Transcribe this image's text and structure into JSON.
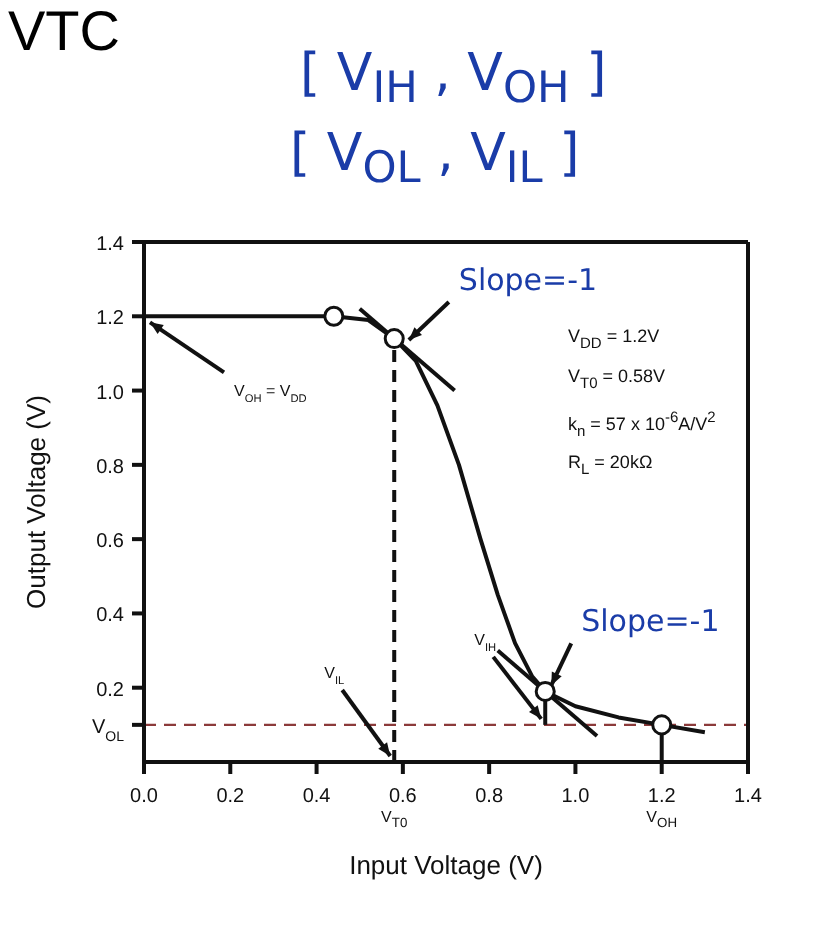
{
  "chart_data": {
    "type": "line",
    "title": "VTC",
    "xlabel": "Input Voltage (V)",
    "ylabel": "Output Voltage (V)",
    "xlim": [
      0,
      1.4
    ],
    "ylim": [
      0,
      1.4
    ],
    "xticks": [
      {
        "value": 0,
        "label": "0.0"
      },
      0.2,
      0.4,
      0.6,
      0.8,
      {
        "value": 1,
        "label": "1.0"
      },
      1.2,
      1.4
    ],
    "yticks": [
      {
        "value": 0.1,
        "label": "V$_{OL}$"
      },
      0.2,
      0.4,
      0.6,
      0.8,
      {
        "value": 1,
        "label": "1.0"
      },
      1.2,
      1.4
    ],
    "grid": false,
    "series": [
      {
        "color": "#111111",
        "marker": "none",
        "line_style": "solid",
        "x": [
          0,
          0.44,
          0.52,
          0.58,
          0.63,
          0.68,
          0.73,
          0.78,
          0.82,
          0.86,
          0.9,
          0.93,
          1.0,
          1.1,
          1.2,
          1.3
        ],
        "values": [
          1.2,
          1.2,
          1.19,
          1.14,
          1.08,
          0.96,
          0.8,
          0.6,
          0.45,
          0.32,
          0.23,
          0.19,
          0.15,
          0.12,
          0.1,
          0.08
        ]
      },
      {
        "type": "line",
        "color": "#111111",
        "marker": "none",
        "line_style": "solid",
        "x": [
          0.5,
          0.72
        ],
        "values": [
          1.22,
          1.0
        ]
      },
      {
        "type": "line",
        "color": "#111111",
        "marker": "none",
        "line_style": "solid",
        "x": [
          0.82,
          1.05
        ],
        "values": [
          0.3,
          0.07
        ]
      },
      {
        "type": "line",
        "color": "#111111",
        "marker": "none",
        "line_style": "dashed",
        "x": [
          0.58,
          0.58
        ],
        "values": [
          0,
          1.14
        ]
      },
      {
        "type": "line",
        "color": "#111111",
        "marker": "none",
        "line_style": "solid",
        "x": [
          0.93,
          0.93
        ],
        "values": [
          0.1,
          0.19
        ]
      },
      {
        "type": "line",
        "color": "#111111",
        "marker": "none",
        "line_style": "solid",
        "x": [
          1.2,
          1.2
        ],
        "values": [
          0,
          0.1
        ]
      },
      {
        "type": "scatter",
        "color": "#111111",
        "marker": "circle",
        "x": [
          0.44,
          0.58,
          0.93,
          1.2
        ],
        "values": [
          1.2,
          1.14,
          0.19,
          0.1
        ]
      }
    ],
    "ref_lines": [
      {
        "axis": "y",
        "value": 0.1,
        "color": "#8b3a3a",
        "line_style": "dashed"
      }
    ],
    "annotations": [
      "[ V$_{IH}$ , V$_{OH}$ ]",
      "[ V$_{OL}$ , V$_{IL}$ ]",
      {
        "text": "V$_{OH}$ = V$_{DD}$",
        "x": 0,
        "y": 1.2
      },
      {
        "text": "Slope=-1",
        "x": 0.6,
        "y": 1.12
      },
      {
        "text": "Slope=-1",
        "x": 0.93,
        "y": 0.19
      },
      {
        "text": "V$_{IL}$",
        "x": 0.58,
        "y": 0
      },
      {
        "text": "V$_{IH}$",
        "x": 0.93,
        "y": 0.1
      },
      "V$_{T0}$",
      "V$_{OH}$",
      "V$_{DD}$ = 1.2V",
      "V$_{T0}$ = 0.58V",
      "k$_{n}$ = 57 x 10$^{-6}$A/V$^{2}$",
      "R$_{L}$ = 20kΩ"
    ]
  }
}
